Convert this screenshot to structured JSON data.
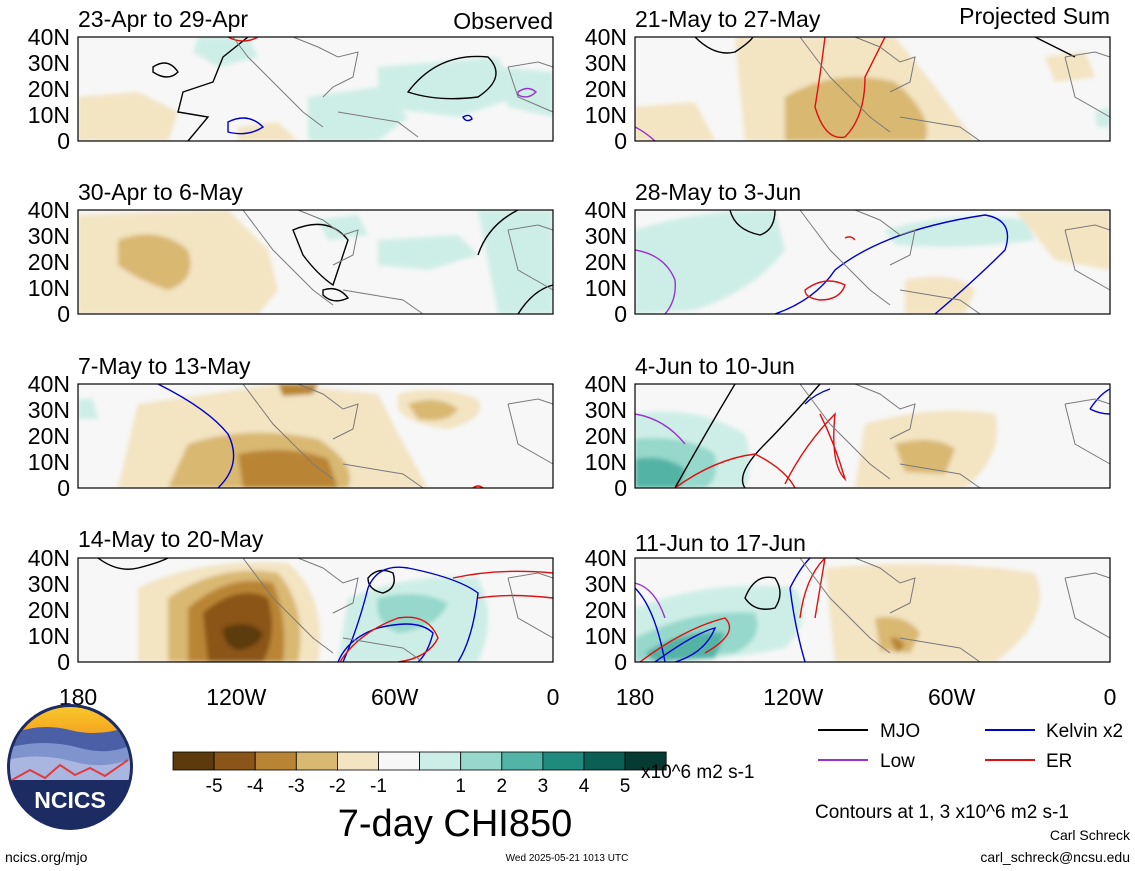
{
  "panels_observed": [
    {
      "title": "23-Apr to 29-Apr",
      "tag": "Observed"
    },
    {
      "title": "30-Apr to 6-May",
      "tag": ""
    },
    {
      "title": "7-May to 13-May",
      "tag": ""
    },
    {
      "title": "14-May to 20-May",
      "tag": ""
    }
  ],
  "panels_projected": [
    {
      "title": "21-May to 27-May",
      "tag": "Projected Sum"
    },
    {
      "title": "28-May to 3-Jun",
      "tag": ""
    },
    {
      "title": "4-Jun to 10-Jun",
      "tag": ""
    },
    {
      "title": "11-Jun to 17-Jun",
      "tag": ""
    }
  ],
  "lat_labels": [
    "40N",
    "30N",
    "20N",
    "10N",
    "0"
  ],
  "lon_labels": [
    "180",
    "120W",
    "60W",
    "0"
  ],
  "colorbar": {
    "colors": [
      "#5c3a0b",
      "#8a5518",
      "#b98534",
      "#d9b872",
      "#f3e4c2",
      "#f7f7f7",
      "#cdeee6",
      "#96d8cb",
      "#52b4a6",
      "#1f8a7e",
      "#0b5f55",
      "#053b33"
    ],
    "tick_labels": [
      "-5",
      "-4",
      "-3",
      "-2",
      "-1",
      "1",
      "2",
      "3",
      "4",
      "5"
    ],
    "units": "x10^6 m2 s-1",
    "title": "7-day CHI850"
  },
  "legend": {
    "items": [
      {
        "label": "MJO",
        "color": "#000000"
      },
      {
        "label": "Kelvin x2",
        "color": "#0000cc"
      },
      {
        "label": "Low",
        "color": "#9a33cc"
      },
      {
        "label": "ER",
        "color": "#dd1111"
      }
    ],
    "note": "Contours at 1, 3 x10^6 m2 s-1"
  },
  "footer": {
    "url": "ncics.org/mjo",
    "timestamp": "Wed 2025-05-21 1013 UTC",
    "author": "Carl Schreck",
    "email": "carl_schreck@ncsu.edu"
  },
  "logo_text": "NCICS"
}
